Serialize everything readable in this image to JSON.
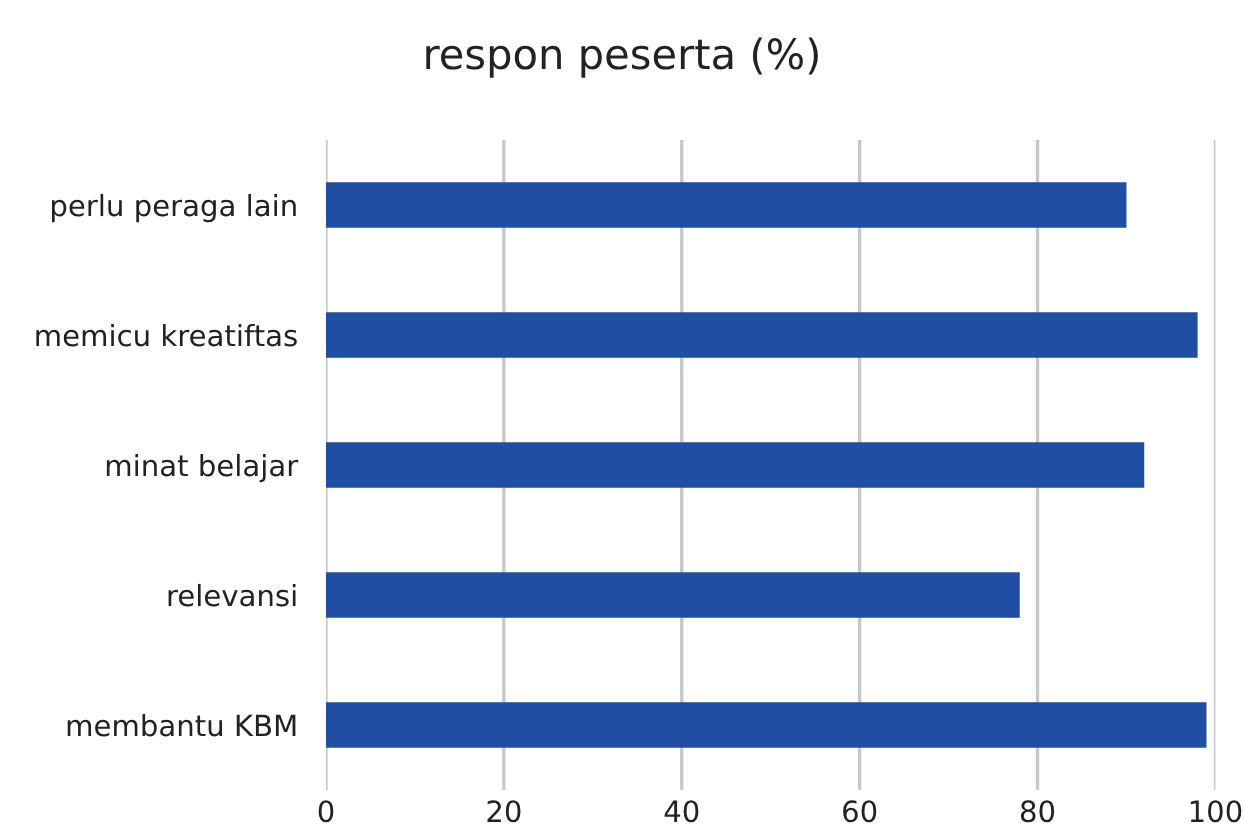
{
  "chart_data": {
    "type": "bar",
    "orientation": "horizontal",
    "title": "respon peserta (%)",
    "categories": [
      "perlu peraga lain",
      "memicu kreatiftas",
      "minat belajar",
      "relevansi",
      "membantu KBM"
    ],
    "values": [
      90,
      98,
      92,
      78,
      99
    ],
    "color": "#1f4ea3",
    "xlim": [
      0,
      100
    ],
    "xticks": [
      0,
      20,
      40,
      60,
      80,
      100
    ],
    "grid": "x"
  }
}
